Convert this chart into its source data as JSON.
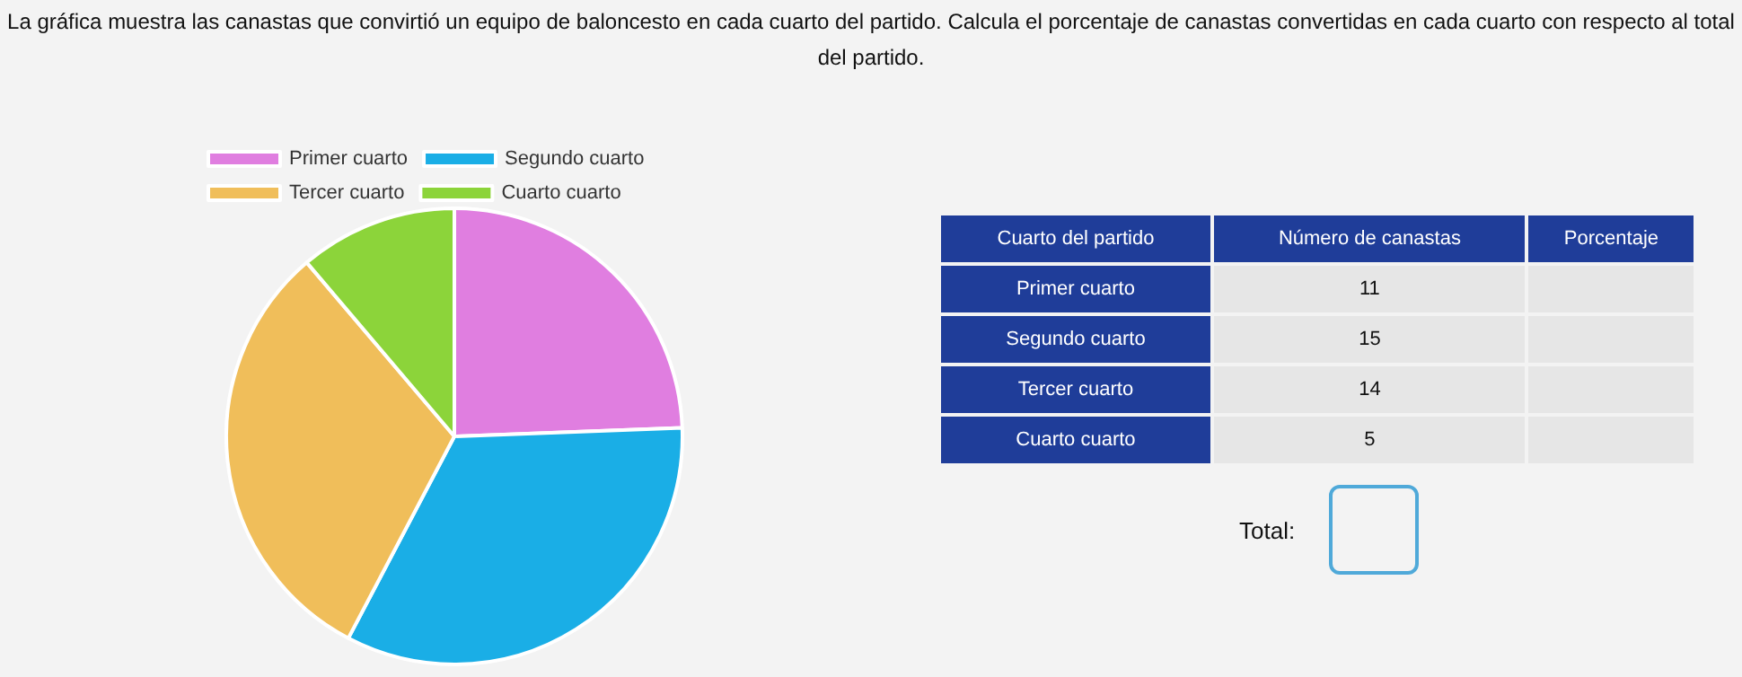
{
  "chart_data": {
    "type": "pie",
    "title": "La gráfica muestra las canastas que convirtió un equipo de baloncesto en cada cuarto del partido. Calcula el porcentaje de canastas convertidas en cada cuarto con respecto al total del partido.",
    "categories": [
      "Primer cuarto",
      "Segundo cuarto",
      "Tercer cuarto",
      "Cuarto cuarto"
    ],
    "values": [
      24.4,
      33.3,
      31.1,
      11.2
    ],
    "colors": [
      "#e07ee0",
      "#1aaee6",
      "#f0be5a",
      "#8cd43a"
    ],
    "legend": "top",
    "annotations": [
      "Cuarto del partido",
      "Número de canastas",
      "Porcentaje",
      "11",
      "15",
      "14",
      "5",
      "Total:"
    ]
  }
}
